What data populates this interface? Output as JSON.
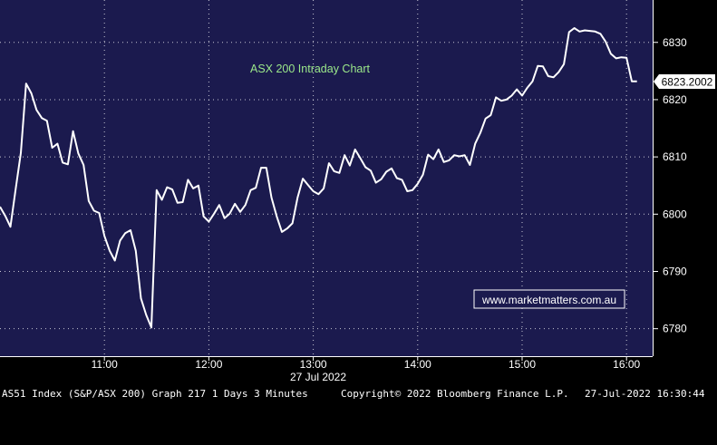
{
  "chart_data": {
    "type": "line",
    "title": "ASX 200 Intraday Chart",
    "date_label": "27 Jul 2022",
    "x_ticks": [
      "11:00",
      "12:00",
      "13:00",
      "14:00",
      "15:00",
      "16:00"
    ],
    "y_ticks": [
      6780,
      6790,
      6800,
      6810,
      6820,
      6830
    ],
    "ylim": [
      6775.2,
      6837.4
    ],
    "xlim": [
      "10:00",
      "16:15"
    ],
    "grid": true,
    "last_value_label": "6823.2002",
    "series": [
      {
        "values": [
          6801.3,
          6799.7,
          6797.8,
          6804.4,
          6810.7,
          6822.8,
          6821.1,
          6818.2,
          6816.8,
          6816.3,
          6811.6,
          6812.3,
          6809.0,
          6808.7,
          6814.5,
          6810.6,
          6808.6,
          6802.3,
          6800.6,
          6800.2,
          6796.2,
          6793.6,
          6791.9,
          6795.4,
          6796.7,
          6797.2,
          6793.6,
          6785.3,
          6782.4,
          6780.2,
          6804.2,
          6802.5,
          6804.7,
          6804.3,
          6802.0,
          6802.1,
          6806.0,
          6804.5,
          6805.0,
          6799.6,
          6798.7,
          6800.1,
          6801.6,
          6799.3,
          6800.1,
          6801.8,
          6800.4,
          6801.6,
          6804.2,
          6804.6,
          6808.1,
          6808.1,
          6802.9,
          6799.6,
          6796.9,
          6797.5,
          6798.4,
          6802.9,
          6806.2,
          6805.1,
          6804.0,
          6803.5,
          6804.5,
          6808.9,
          6807.5,
          6807.2,
          6810.3,
          6808.5,
          6811.3,
          6809.8,
          6808.2,
          6807.6,
          6805.5,
          6806.1,
          6807.4,
          6808.0,
          6806.3,
          6806.0,
          6804.0,
          6804.2,
          6805.3,
          6806.9,
          6810.4,
          6809.6,
          6811.3,
          6809.1,
          6809.4,
          6810.3,
          6810.1,
          6810.3,
          6808.6,
          6812.3,
          6814.2,
          6816.7,
          6817.3,
          6820.4,
          6819.8,
          6820.0,
          6820.7,
          6821.8,
          6820.7,
          6822.1,
          6823.2,
          6825.9,
          6825.8,
          6824.1,
          6823.9,
          6824.8,
          6826.2,
          6831.8,
          6832.5,
          6831.9,
          6832.1,
          6832.0,
          6831.9,
          6831.5,
          6830.1,
          6828.0,
          6827.2,
          6827.4,
          6827.3,
          6823.2,
          6823.2
        ]
      }
    ]
  },
  "watermark": {
    "text": "www.marketmatters.com.au",
    "color": "#ffffff",
    "background": "#1b1a4e"
  },
  "footer": {
    "left": "AS51 Index (S&P/ASX 200) Graph 217 1 Days 3 Minutes",
    "center": "Copyright© 2022 Bloomberg Finance L.P.",
    "right": "27-Jul-2022 16:30:44"
  },
  "colors": {
    "plot_background": "#1b1a4e",
    "line": "#ffffff",
    "title": "#9be88a",
    "grid": "#ffffff"
  }
}
